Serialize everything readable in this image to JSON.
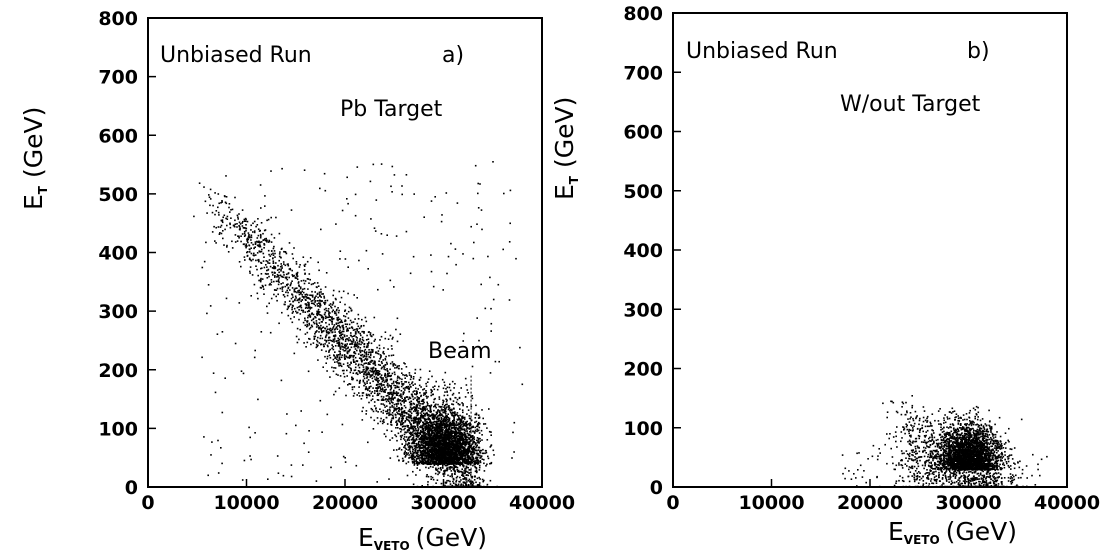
{
  "chart_data": [
    {
      "id": "a",
      "type": "scatter",
      "xlabel": "E",
      "xlabel_sub": "VETO",
      "xlabel_unit": "(GeV)",
      "ylabel": "E",
      "ylabel_sub": "T",
      "ylabel_unit": "(GeV)",
      "xlim": [
        0,
        40000
      ],
      "ylim": [
        0,
        800
      ],
      "xticks": [
        "0",
        "10000",
        "20000",
        "30000",
        "40000"
      ],
      "yticks": [
        "0",
        "100",
        "200",
        "300",
        "400",
        "500",
        "600",
        "700",
        "800"
      ],
      "annotations": {
        "run": "Unbiased Run",
        "panel": "a)",
        "target": "Pb Target",
        "beam": "Beam"
      },
      "beam_marker": {
        "x": 32800,
        "y_range": [
          0,
          190
        ]
      },
      "point_color": "#000000",
      "distribution": {
        "description": "dense diagonal band",
        "band_start": {
          "x": 5000,
          "y": 510
        },
        "band_end": {
          "x": 33000,
          "y": 15
        },
        "core_cluster": {
          "x": 30000,
          "y": 50
        }
      }
    },
    {
      "id": "b",
      "type": "scatter",
      "xlabel": "E",
      "xlabel_sub": "VETO",
      "xlabel_unit": "(GeV)",
      "ylabel": "E",
      "ylabel_sub": "T",
      "ylabel_unit": "(GeV)",
      "xlim": [
        0,
        40000
      ],
      "ylim": [
        0,
        800
      ],
      "xticks": [
        "0",
        "10000",
        "20000",
        "30000",
        "40000"
      ],
      "yticks": [
        "0",
        "100",
        "200",
        "300",
        "400",
        "500",
        "600",
        "700",
        "800"
      ],
      "annotations": {
        "run": "Unbiased Run",
        "panel": "b)",
        "target": "W/out Target"
      },
      "point_color": "#000000",
      "distribution": {
        "description": "compact cluster",
        "band_start": {
          "x": 23000,
          "y": 150
        },
        "band_end": {
          "x": 33000,
          "y": 10
        },
        "core_cluster": {
          "x": 30000,
          "y": 30
        }
      }
    }
  ]
}
